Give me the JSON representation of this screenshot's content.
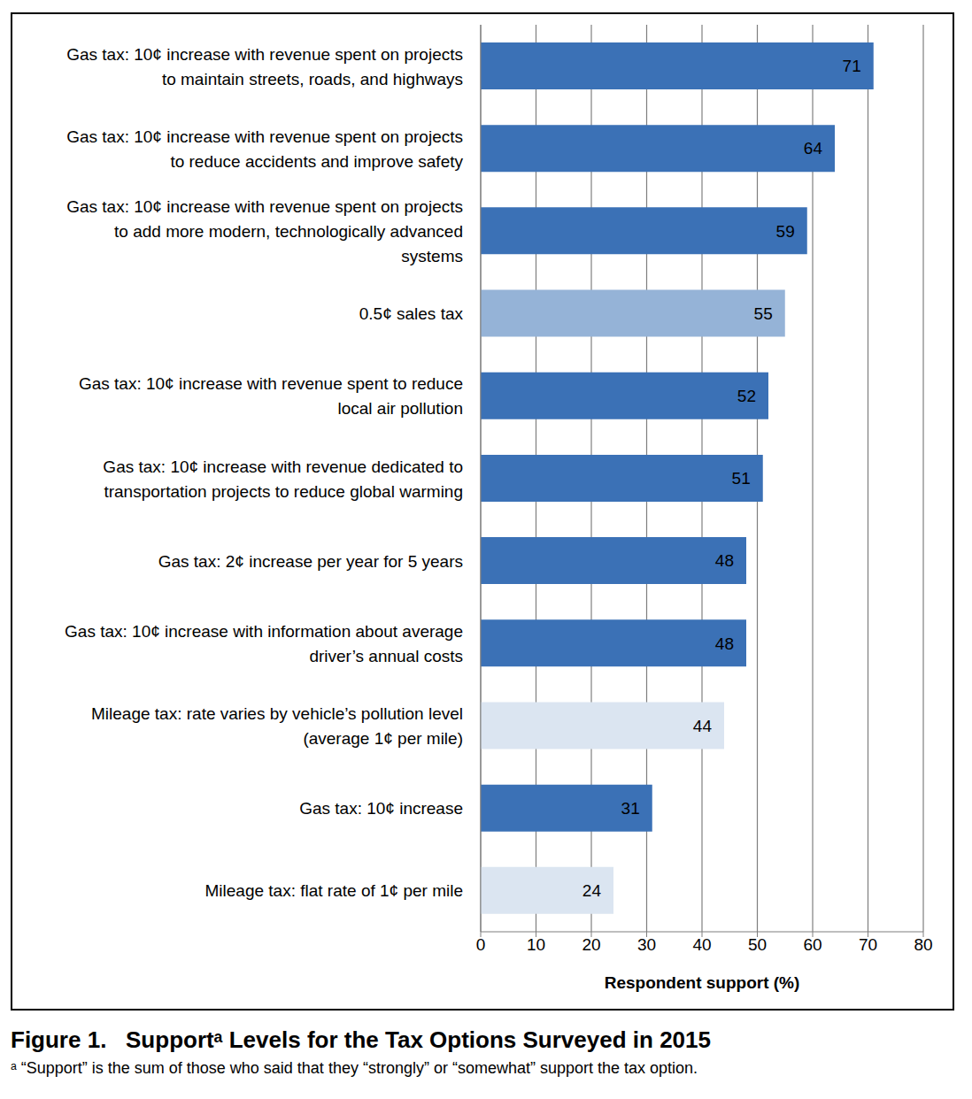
{
  "chart_data": {
    "type": "bar",
    "orientation": "horizontal",
    "title": "Figure 1.   Supportᵃ Levels for the Tax Options Surveyed in 2015",
    "footnote": "ᵃ “Support” is the sum of those who said that they “strongly” or “somewhat” support the tax option.",
    "x_label": "Respondent support (%)",
    "categories": [
      "Gas tax: 10¢ increase with revenue spent on projects\nto maintain streets, roads, and highways",
      "Gas tax: 10¢ increase with revenue spent on projects\nto reduce accidents and improve safety",
      "Gas tax: 10¢ increase with revenue spent on projects\nto add more modern, technologically advanced\nsystems",
      "0.5¢ sales tax",
      "Gas tax: 10¢ increase with revenue spent to reduce\nlocal air pollution",
      "Gas tax: 10¢ increase with revenue dedicated to\ntransportation projects to reduce global warming",
      "Gas tax: 2¢ increase per year for 5 years",
      "Gas tax: 10¢ increase with information about average\ndriver’s annual costs",
      "Mileage tax: rate varies by vehicle’s pollution level\n(average 1¢ per mile)",
      "Gas tax: 10¢ increase",
      "Mileage tax: flat rate of 1¢ per mile"
    ],
    "values": [
      71,
      64,
      59,
      55,
      52,
      51,
      48,
      48,
      44,
      31,
      24
    ],
    "colors": [
      "#3b71b6",
      "#3b71b6",
      "#3b71b6",
      "#95b3d7",
      "#3b71b6",
      "#3b71b6",
      "#3b71b6",
      "#3b71b6",
      "#dbe5f1",
      "#3b71b6",
      "#dbe5f1"
    ],
    "xlim": [
      0,
      80
    ],
    "xticks": [
      0,
      10,
      20,
      30,
      40,
      50,
      60,
      70,
      80
    ],
    "grid": true,
    "data_labels": true
  }
}
